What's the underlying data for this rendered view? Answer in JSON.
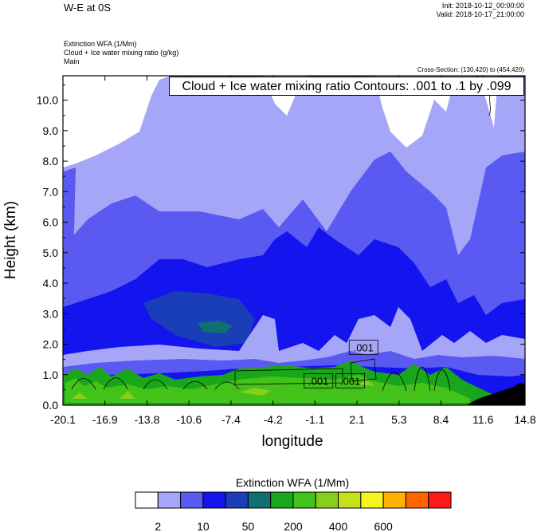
{
  "header": {
    "title": "W-E at 0S",
    "init": "Init: 2018-10-12_00:00:00",
    "valid": "Valid: 2018-10-17_21:00:00",
    "subtitle_lines": [
      "Extinction WFA   (1/Mm)",
      "Cloud + Ice water mixing ratio   (g/kg)",
      "Main"
    ],
    "cross_section": "Cross-Section: (130,420) to (454,420)"
  },
  "chart_data": {
    "type": "heatmap",
    "title": "W-E at 0S",
    "xlabel": "longitude",
    "ylabel": "Height (km)",
    "xlim": [
      -20.1,
      14.8
    ],
    "ylim": [
      0.0,
      10.8
    ],
    "x_ticks": [
      "-20.1",
      "-16.9",
      "-13.8",
      "-10.6",
      "-7.4",
      "-4.2",
      "-1.1",
      "2.1",
      "5.3",
      "8.4",
      "11.6",
      "14.8"
    ],
    "y_ticks": [
      "0.0",
      "1.0",
      "2.0",
      "3.0",
      "4.0",
      "5.0",
      "6.0",
      "7.0",
      "8.0",
      "9.0",
      "10.0"
    ],
    "contour_info": "Cloud + Ice water mixing ratio Contours: .001 to .1 by .099",
    "contour_labels": [
      {
        "text": ".001",
        "lon": -0.8,
        "height": 0.8
      },
      {
        "text": ".001",
        "lon": 1.6,
        "height": 0.8
      },
      {
        "text": ".001",
        "lon": 2.6,
        "height": 1.9
      }
    ],
    "colorbar": {
      "title": "Extinction WFA  (1/Mm)",
      "colors": [
        "#ffffff",
        "#a6a6f8",
        "#5a5af2",
        "#1414ee",
        "#1a3db8",
        "#0f7070",
        "#1aa61a",
        "#43c21a",
        "#86cf1a",
        "#c6e01a",
        "#f5f51a",
        "#ffb000",
        "#ff6600",
        "#ff1a1a"
      ],
      "tick_labels": [
        "2",
        "10",
        "50",
        "200",
        "400",
        "600"
      ]
    },
    "grid": false,
    "legend": "bottom"
  }
}
